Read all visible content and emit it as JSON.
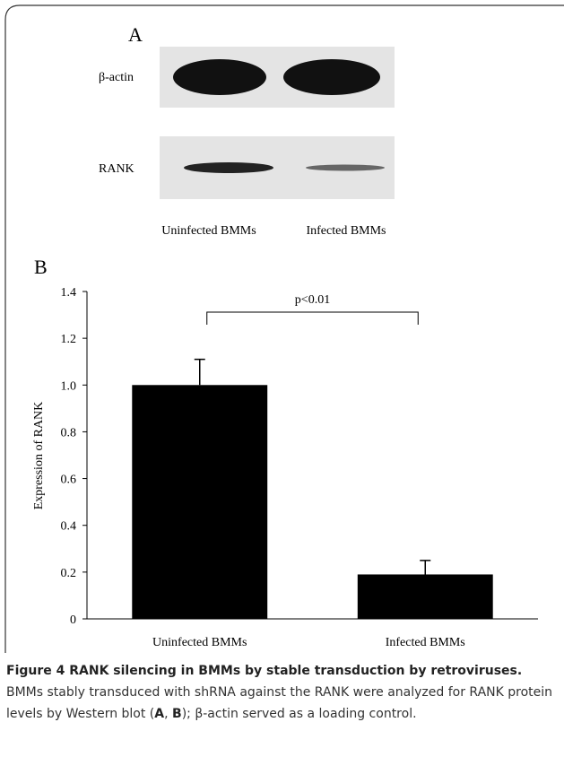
{
  "panel_a": {
    "label": "A",
    "rows": [
      "β-actin",
      "RANK"
    ],
    "lanes": [
      "Uninfected BMMs",
      "Infected BMMs"
    ]
  },
  "panel_b": {
    "label": "B"
  },
  "chart_data": {
    "type": "bar",
    "ylabel": "Expression of RANK",
    "categories": [
      "Uninfected BMMs",
      "Infected BMMs"
    ],
    "values": [
      1.0,
      0.19
    ],
    "errors": [
      0.11,
      0.06
    ],
    "color": "#000000",
    "ylim": [
      0,
      1.4
    ],
    "yticks": [
      0,
      0.2,
      0.4,
      0.6,
      0.8,
      {
        "value": 1,
        "label": "1.0"
      },
      1.2,
      1.4
    ],
    "annotation": "p<0.01",
    "grid": false
  },
  "caption": {
    "title": "Figure 4 RANK silencing in BMMs by stable transduction by retroviruses.",
    "text_1": "BMMs stably transduced with shRNA against the RANK were analyzed for RANK protein levels by Western blot (",
    "ref_a": "A",
    "sep": ", ",
    "ref_b": "B",
    "text_2": "); β-actin served as a loading control."
  }
}
